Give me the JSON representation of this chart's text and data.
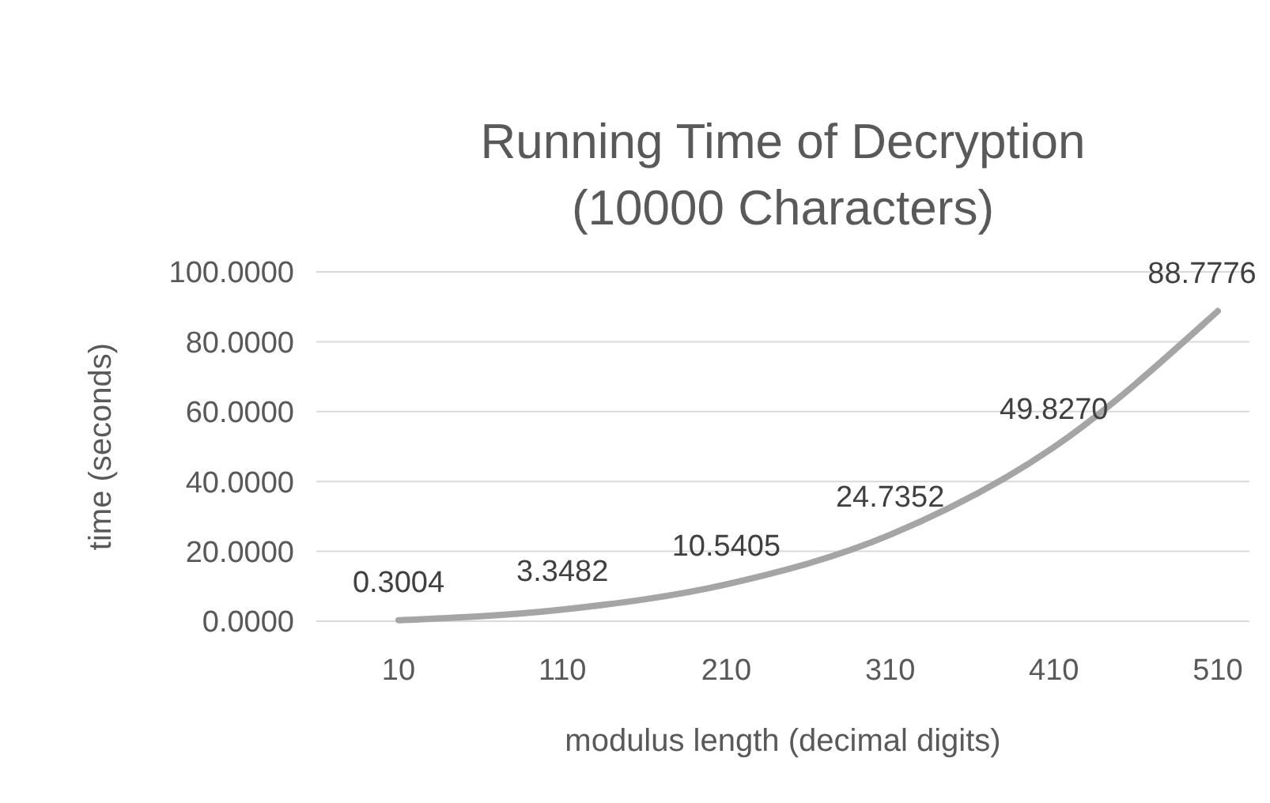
{
  "chart_data": {
    "type": "line",
    "title": "Running Time of Decryption\n(10000 Characters)",
    "xlabel": "modulus length (decimal digits)",
    "ylabel": "time (seconds)",
    "categories": [
      "10",
      "110",
      "210",
      "310",
      "410",
      "510"
    ],
    "series": [
      {
        "color": "#a5a5a5",
        "values": [
          0.3004,
          3.3482,
          10.5405,
          24.7352,
          49.827,
          88.7776
        ]
      }
    ],
    "value_labels": [
      "0.3004",
      "3.3482",
      "10.5405",
      "24.7352",
      "49.8270",
      "88.7776"
    ],
    "ylim": [
      0,
      100
    ],
    "yticks": [
      {
        "value": 0,
        "label": "0.0000"
      },
      {
        "value": 20,
        "label": "20.0000"
      },
      {
        "value": 40,
        "label": "40.0000"
      },
      {
        "value": 60,
        "label": "60.0000"
      },
      {
        "value": 80,
        "label": "80.0000"
      },
      {
        "value": 100,
        "label": "100.0000"
      }
    ],
    "grid": "y",
    "marker": "none",
    "line_style": "solid"
  }
}
